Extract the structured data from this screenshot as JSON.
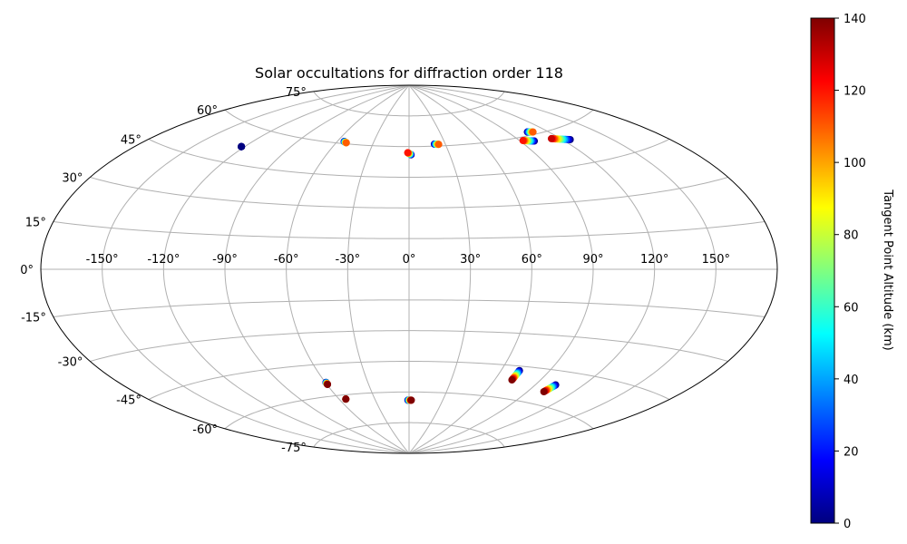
{
  "chart_data": {
    "type": "scatter",
    "title": "Solar occultations for diffraction order 118",
    "projection": "aitoff",
    "grid": true,
    "lon_ticks": [
      -150,
      -120,
      -90,
      -60,
      -30,
      0,
      30,
      60,
      90,
      120,
      150
    ],
    "lon_tick_labels": [
      "-150°",
      "-120°",
      "-90°",
      "-60°",
      "-30°",
      "0°",
      "30°",
      "60°",
      "90°",
      "120°",
      "150°"
    ],
    "lat_ticks": [
      75,
      60,
      45,
      30,
      15,
      0,
      -15,
      -30,
      -45,
      -60,
      -75
    ],
    "lat_tick_labels": [
      "75°",
      "60°",
      "45°",
      "30°",
      "15°",
      "0°",
      "-15°",
      "-30°",
      "-45°",
      "-60°",
      "-75°"
    ],
    "colorbar": {
      "label": "Tangent Point Altitude (km)",
      "colormap": "jet",
      "range": [
        0,
        140
      ],
      "ticks": [
        0,
        20,
        40,
        60,
        80,
        100,
        120,
        140
      ],
      "tick_labels": [
        "0",
        "20",
        "40",
        "60",
        "80",
        "100",
        "120",
        "140"
      ]
    },
    "tracks": [
      {
        "lon_start": -122.0,
        "lat_start": 52.0,
        "lon_end": -122.0,
        "lat_end": 52.0,
        "alt_start": 0,
        "alt_end": 0
      },
      {
        "lon_start": -54.5,
        "lat_start": 61.0,
        "lon_end": -52.0,
        "lat_end": 60.5,
        "alt_start": 0,
        "alt_end": 110
      },
      {
        "lon_start": 1.5,
        "lat_start": 56.0,
        "lon_end": -1.0,
        "lat_end": 57.0,
        "alt_start": 0,
        "alt_end": 120
      },
      {
        "lon_start": 21.0,
        "lat_start": 61.0,
        "lon_end": 24.5,
        "lat_end": 60.8,
        "alt_start": 0,
        "alt_end": 110
      },
      {
        "lon_start": 100.0,
        "lat_start": 57.5,
        "lon_end": 92.5,
        "lat_end": 58.5,
        "alt_start": 0,
        "alt_end": 120
      },
      {
        "lon_start": 105.0,
        "lat_start": 61.5,
        "lon_end": 109.0,
        "lat_end": 61.0,
        "alt_start": 0,
        "alt_end": 110
      },
      {
        "lon_start": 125.0,
        "lat_start": 55.0,
        "lon_end": 114.0,
        "lat_end": 57.0,
        "alt_start": 0,
        "alt_end": 130
      },
      {
        "lon_start": -59.5,
        "lat_start": -53.5,
        "lon_end": -59.5,
        "lat_end": -54.5,
        "alt_start": 0,
        "alt_end": 140
      },
      {
        "lon_start": -54.5,
        "lat_start": -62.0,
        "lon_end": -54.5,
        "lat_end": -62.0,
        "alt_start": 0,
        "alt_end": 140
      },
      {
        "lon_start": -1.0,
        "lat_start": -64.0,
        "lon_end": 2.0,
        "lat_end": -64.0,
        "alt_start": 0,
        "alt_end": 140
      },
      {
        "lon_start": 71.5,
        "lat_start": -47.0,
        "lon_end": 71.5,
        "lat_end": -51.5,
        "alt_start": 0,
        "alt_end": 140
      },
      {
        "lon_start": 103.0,
        "lat_start": -51.0,
        "lon_end": 101.0,
        "lat_end": -54.5,
        "alt_start": 0,
        "alt_end": 140
      }
    ]
  }
}
